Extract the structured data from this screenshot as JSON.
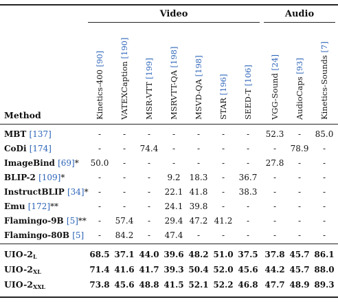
{
  "table": {
    "method_header": "Method",
    "groups": [
      {
        "label": "Video",
        "span": 7
      },
      {
        "label": "Audio",
        "span": 3
      }
    ],
    "columns": [
      {
        "name": "Kinetics-400",
        "ref": "[90]"
      },
      {
        "name": "VATEXCaption",
        "ref": "[190]"
      },
      {
        "name": "MSR-VTT",
        "ref": "[199]"
      },
      {
        "name": "MSRVTT-QA",
        "ref": "[198]"
      },
      {
        "name": "MSVD-QA",
        "ref": "[198]"
      },
      {
        "name": "STAR",
        "ref": "[196]"
      },
      {
        "name": "SEED-T",
        "ref": "[106]"
      },
      {
        "name": "VGG-Sound",
        "ref": "[24]"
      },
      {
        "name": "AudioCaps",
        "ref": "[93]"
      },
      {
        "name": "Kinetics-Sounds",
        "ref": "[7]"
      }
    ],
    "baselines": [
      {
        "name": "MBT",
        "ref": "[137]",
        "mark": "",
        "values": [
          "-",
          "-",
          "-",
          "-",
          "-",
          "-",
          "-",
          "52.3",
          "-",
          "85.0"
        ]
      },
      {
        "name": "CoDi",
        "ref": "[174]",
        "mark": "",
        "values": [
          "-",
          "-",
          "74.4",
          "-",
          "-",
          "-",
          "-",
          "-",
          "78.9",
          "-"
        ]
      },
      {
        "name": "ImageBind",
        "ref": "[69]",
        "mark": "*",
        "values": [
          "50.0",
          "-",
          "-",
          "-",
          "-",
          "-",
          "-",
          "27.8",
          "-",
          "-"
        ]
      },
      {
        "name": "BLIP-2",
        "ref": "[109]",
        "mark": "*",
        "values": [
          "-",
          "-",
          "-",
          "9.2",
          "18.3",
          "-",
          "36.7",
          "-",
          "-",
          "-"
        ]
      },
      {
        "name": "InstructBLIP",
        "ref": "[34]",
        "mark": "*",
        "values": [
          "-",
          "-",
          "-",
          "22.1",
          "41.8",
          "-",
          "38.3",
          "-",
          "-",
          "-"
        ]
      },
      {
        "name": "Emu",
        "ref": "[172]",
        "mark": "**",
        "values": [
          "-",
          "-",
          "-",
          "24.1",
          "39.8",
          "-",
          "-",
          "-",
          "-",
          "-"
        ]
      },
      {
        "name": "Flamingo-9B",
        "ref": "[5]",
        "mark": "**",
        "values": [
          "-",
          "57.4",
          "-",
          "29.4",
          "47.2",
          "41.2",
          "-",
          "-",
          "-",
          "-"
        ]
      },
      {
        "name": "Flamingo-80B",
        "ref": "[5]",
        "mark": "",
        "values": [
          "-",
          "84.2",
          "-",
          "47.4",
          "-",
          "-",
          "-",
          "-",
          "-",
          "-"
        ]
      }
    ],
    "ours": [
      {
        "base": "UIO-2",
        "sub": "L",
        "values": [
          "68.5",
          "37.1",
          "44.0",
          "39.6",
          "48.2",
          "51.0",
          "37.5",
          "37.8",
          "45.7",
          "86.1"
        ]
      },
      {
        "base": "UIO-2",
        "sub": "XL",
        "values": [
          "71.4",
          "41.6",
          "41.7",
          "39.3",
          "50.4",
          "52.0",
          "45.6",
          "44.2",
          "45.7",
          "88.0"
        ]
      },
      {
        "base": "UIO-2",
        "sub": "XXL",
        "values": [
          "73.8",
          "45.6",
          "48.8",
          "41.5",
          "52.1",
          "52.2",
          "46.8",
          "47.7",
          "48.9",
          "89.3"
        ]
      }
    ]
  }
}
